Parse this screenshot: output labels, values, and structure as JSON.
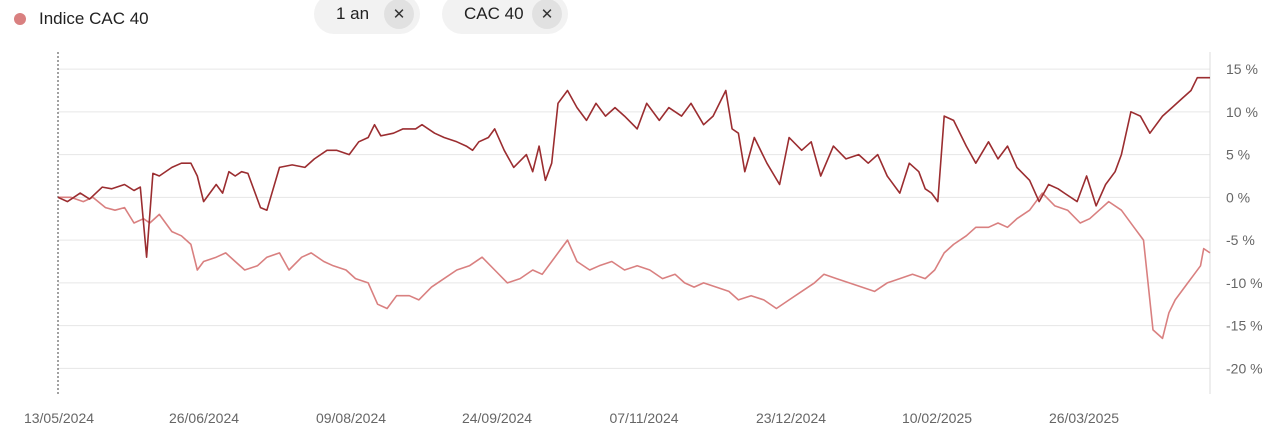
{
  "legend": {
    "label": "Indice CAC 40",
    "color": "#d98080"
  },
  "chips": [
    {
      "label": "1 an",
      "close_icon": "close-icon"
    },
    {
      "label": "CAC 40",
      "close_icon": "close-icon"
    }
  ],
  "chart_data": {
    "type": "line",
    "ylim": [
      -23,
      17
    ],
    "yticks": [
      15,
      10,
      5,
      0,
      -5,
      -10,
      -15,
      -20
    ],
    "ytick_labels": [
      "15 %",
      "10 %",
      "5 %",
      "0 %",
      "-5 %",
      "-10 %",
      "-15 %",
      "-20 %"
    ],
    "xtick_labels": [
      "13/05/2024",
      "26/06/2024",
      "09/08/2024",
      "24/09/2024",
      "07/11/2024",
      "23/12/2024",
      "10/02/2025",
      "26/03/2025"
    ],
    "x_start": "2024-05-13",
    "x_end": "2025-05-12",
    "grid": true,
    "series": [
      {
        "name": "",
        "color": "#9b2d30",
        "points": [
          [
            "2024-05-13",
            0
          ],
          [
            "2024-05-16",
            -0.5
          ],
          [
            "2024-05-20",
            0.5
          ],
          [
            "2024-05-23",
            -0.2
          ],
          [
            "2024-05-27",
            1.2
          ],
          [
            "2024-05-30",
            1.0
          ],
          [
            "2024-06-03",
            1.5
          ],
          [
            "2024-06-06",
            0.8
          ],
          [
            "2024-06-08",
            1.2
          ],
          [
            "2024-06-10",
            -7.0
          ],
          [
            "2024-06-12",
            2.8
          ],
          [
            "2024-06-14",
            2.5
          ],
          [
            "2024-06-18",
            3.5
          ],
          [
            "2024-06-21",
            4.0
          ],
          [
            "2024-06-24",
            4.0
          ],
          [
            "2024-06-26",
            2.5
          ],
          [
            "2024-06-28",
            -0.5
          ],
          [
            "2024-07-02",
            1.5
          ],
          [
            "2024-07-04",
            0.5
          ],
          [
            "2024-07-06",
            3.0
          ],
          [
            "2024-07-08",
            2.5
          ],
          [
            "2024-07-10",
            3.0
          ],
          [
            "2024-07-12",
            2.8
          ],
          [
            "2024-07-16",
            -1.2
          ],
          [
            "2024-07-18",
            -1.5
          ],
          [
            "2024-07-22",
            3.5
          ],
          [
            "2024-07-26",
            3.8
          ],
          [
            "2024-07-30",
            3.5
          ],
          [
            "2024-08-02",
            4.5
          ],
          [
            "2024-08-06",
            5.5
          ],
          [
            "2024-08-09",
            5.5
          ],
          [
            "2024-08-13",
            5.0
          ],
          [
            "2024-08-16",
            6.5
          ],
          [
            "2024-08-19",
            7.0
          ],
          [
            "2024-08-21",
            8.5
          ],
          [
            "2024-08-23",
            7.2
          ],
          [
            "2024-08-27",
            7.5
          ],
          [
            "2024-08-30",
            8.0
          ],
          [
            "2024-09-03",
            8.0
          ],
          [
            "2024-09-05",
            8.5
          ],
          [
            "2024-09-09",
            7.5
          ],
          [
            "2024-09-12",
            7.0
          ],
          [
            "2024-09-16",
            6.5
          ],
          [
            "2024-09-19",
            6.0
          ],
          [
            "2024-09-21",
            5.5
          ],
          [
            "2024-09-23",
            6.5
          ],
          [
            "2024-09-26",
            7.0
          ],
          [
            "2024-09-28",
            8.0
          ],
          [
            "2024-10-01",
            5.5
          ],
          [
            "2024-10-04",
            3.5
          ],
          [
            "2024-10-08",
            5.0
          ],
          [
            "2024-10-10",
            3.0
          ],
          [
            "2024-10-12",
            6.0
          ],
          [
            "2024-10-14",
            2.0
          ],
          [
            "2024-10-16",
            4.0
          ],
          [
            "2024-10-18",
            11.0
          ],
          [
            "2024-10-21",
            12.5
          ],
          [
            "2024-10-24",
            10.5
          ],
          [
            "2024-10-27",
            9.0
          ],
          [
            "2024-10-30",
            11.0
          ],
          [
            "2024-11-02",
            9.5
          ],
          [
            "2024-11-05",
            10.5
          ],
          [
            "2024-11-08",
            9.5
          ],
          [
            "2024-11-12",
            8.0
          ],
          [
            "2024-11-15",
            11.0
          ],
          [
            "2024-11-19",
            9.0
          ],
          [
            "2024-11-22",
            10.5
          ],
          [
            "2024-11-26",
            9.5
          ],
          [
            "2024-11-29",
            11.0
          ],
          [
            "2024-12-03",
            8.5
          ],
          [
            "2024-12-06",
            9.5
          ],
          [
            "2024-12-10",
            12.5
          ],
          [
            "2024-12-12",
            8.0
          ],
          [
            "2024-12-14",
            7.5
          ],
          [
            "2024-12-16",
            3.0
          ],
          [
            "2024-12-19",
            7.0
          ],
          [
            "2024-12-23",
            4.0
          ],
          [
            "2024-12-27",
            1.5
          ],
          [
            "2024-12-30",
            7.0
          ],
          [
            "2025-01-03",
            5.5
          ],
          [
            "2025-01-06",
            6.5
          ],
          [
            "2025-01-09",
            2.5
          ],
          [
            "2025-01-13",
            6.0
          ],
          [
            "2025-01-17",
            4.5
          ],
          [
            "2025-01-21",
            5.0
          ],
          [
            "2025-01-24",
            4.0
          ],
          [
            "2025-01-27",
            5.0
          ],
          [
            "2025-01-30",
            2.5
          ],
          [
            "2025-02-03",
            0.5
          ],
          [
            "2025-02-06",
            4.0
          ],
          [
            "2025-02-09",
            3.0
          ],
          [
            "2025-02-11",
            1.0
          ],
          [
            "2025-02-13",
            0.5
          ],
          [
            "2025-02-15",
            -0.5
          ],
          [
            "2025-02-17",
            9.5
          ],
          [
            "2025-02-20",
            9.0
          ],
          [
            "2025-02-24",
            6.0
          ],
          [
            "2025-02-27",
            4.0
          ],
          [
            "2025-03-03",
            6.5
          ],
          [
            "2025-03-06",
            4.5
          ],
          [
            "2025-03-09",
            6.0
          ],
          [
            "2025-03-12",
            3.5
          ],
          [
            "2025-03-16",
            2.0
          ],
          [
            "2025-03-19",
            -0.5
          ],
          [
            "2025-03-22",
            1.5
          ],
          [
            "2025-03-25",
            1.0
          ],
          [
            "2025-03-27",
            0.5
          ],
          [
            "2025-03-31",
            -0.5
          ],
          [
            "2025-04-03",
            2.5
          ],
          [
            "2025-04-06",
            -1.0
          ],
          [
            "2025-04-09",
            1.5
          ],
          [
            "2025-04-12",
            3.0
          ],
          [
            "2025-04-14",
            5.0
          ],
          [
            "2025-04-17",
            10.0
          ],
          [
            "2025-04-20",
            9.5
          ],
          [
            "2025-04-23",
            7.5
          ],
          [
            "2025-04-27",
            9.5
          ],
          [
            "2025-04-30",
            10.5
          ],
          [
            "2025-05-03",
            11.5
          ],
          [
            "2025-05-06",
            12.5
          ],
          [
            "2025-05-08",
            14.0
          ],
          [
            "2025-05-12",
            14.0
          ]
        ]
      },
      {
        "name": "Indice CAC 40",
        "color": "#d98080",
        "points": [
          [
            "2024-05-13",
            0
          ],
          [
            "2024-05-17",
            0
          ],
          [
            "2024-05-21",
            -0.5
          ],
          [
            "2024-05-24",
            0
          ],
          [
            "2024-05-28",
            -1.2
          ],
          [
            "2024-05-31",
            -1.5
          ],
          [
            "2024-06-03",
            -1.2
          ],
          [
            "2024-06-06",
            -3.0
          ],
          [
            "2024-06-09",
            -2.5
          ],
          [
            "2024-06-11",
            -3.0
          ],
          [
            "2024-06-14",
            -2.0
          ],
          [
            "2024-06-18",
            -4.0
          ],
          [
            "2024-06-21",
            -4.5
          ],
          [
            "2024-06-24",
            -5.5
          ],
          [
            "2024-06-26",
            -8.5
          ],
          [
            "2024-06-28",
            -7.5
          ],
          [
            "2024-07-02",
            -7.0
          ],
          [
            "2024-07-05",
            -6.5
          ],
          [
            "2024-07-08",
            -7.5
          ],
          [
            "2024-07-11",
            -8.5
          ],
          [
            "2024-07-15",
            -8.0
          ],
          [
            "2024-07-18",
            -7.0
          ],
          [
            "2024-07-22",
            -6.5
          ],
          [
            "2024-07-25",
            -8.5
          ],
          [
            "2024-07-29",
            -7.0
          ],
          [
            "2024-08-01",
            -6.5
          ],
          [
            "2024-08-05",
            -7.5
          ],
          [
            "2024-08-08",
            -8.0
          ],
          [
            "2024-08-12",
            -8.5
          ],
          [
            "2024-08-15",
            -9.5
          ],
          [
            "2024-08-19",
            -10.0
          ],
          [
            "2024-08-22",
            -12.5
          ],
          [
            "2024-08-25",
            -13.0
          ],
          [
            "2024-08-28",
            -11.5
          ],
          [
            "2024-09-01",
            -11.5
          ],
          [
            "2024-09-04",
            -12.0
          ],
          [
            "2024-09-08",
            -10.5
          ],
          [
            "2024-09-12",
            -9.5
          ],
          [
            "2024-09-16",
            -8.5
          ],
          [
            "2024-09-20",
            -8.0
          ],
          [
            "2024-09-24",
            -7.0
          ],
          [
            "2024-09-28",
            -8.5
          ],
          [
            "2024-10-02",
            -10.0
          ],
          [
            "2024-10-06",
            -9.5
          ],
          [
            "2024-10-10",
            -8.5
          ],
          [
            "2024-10-13",
            -9.0
          ],
          [
            "2024-10-16",
            -7.5
          ],
          [
            "2024-10-19",
            -6.0
          ],
          [
            "2024-10-21",
            -5.0
          ],
          [
            "2024-10-24",
            -7.5
          ],
          [
            "2024-10-28",
            -8.5
          ],
          [
            "2024-10-31",
            -8.0
          ],
          [
            "2024-11-04",
            -7.5
          ],
          [
            "2024-11-08",
            -8.5
          ],
          [
            "2024-11-12",
            -8.0
          ],
          [
            "2024-11-16",
            -8.5
          ],
          [
            "2024-11-20",
            -9.5
          ],
          [
            "2024-11-24",
            -9.0
          ],
          [
            "2024-11-27",
            -10.0
          ],
          [
            "2024-11-30",
            -10.5
          ],
          [
            "2024-12-03",
            -10.0
          ],
          [
            "2024-12-07",
            -10.5
          ],
          [
            "2024-12-11",
            -11.0
          ],
          [
            "2024-12-14",
            -12.0
          ],
          [
            "2024-12-18",
            -11.5
          ],
          [
            "2024-12-22",
            -12.0
          ],
          [
            "2024-12-26",
            -13.0
          ],
          [
            "2024-12-30",
            -12.0
          ],
          [
            "2025-01-03",
            -11.0
          ],
          [
            "2025-01-07",
            -10.0
          ],
          [
            "2025-01-10",
            -9.0
          ],
          [
            "2025-01-14",
            -9.5
          ],
          [
            "2025-01-18",
            -10.0
          ],
          [
            "2025-01-22",
            -10.5
          ],
          [
            "2025-01-26",
            -11.0
          ],
          [
            "2025-01-30",
            -10.0
          ],
          [
            "2025-02-03",
            -9.5
          ],
          [
            "2025-02-07",
            -9.0
          ],
          [
            "2025-02-11",
            -9.5
          ],
          [
            "2025-02-14",
            -8.5
          ],
          [
            "2025-02-17",
            -6.5
          ],
          [
            "2025-02-20",
            -5.5
          ],
          [
            "2025-02-24",
            -4.5
          ],
          [
            "2025-02-27",
            -3.5
          ],
          [
            "2025-03-03",
            -3.5
          ],
          [
            "2025-03-06",
            -3.0
          ],
          [
            "2025-03-09",
            -3.5
          ],
          [
            "2025-03-12",
            -2.5
          ],
          [
            "2025-03-16",
            -1.5
          ],
          [
            "2025-03-20",
            0.5
          ],
          [
            "2025-03-24",
            -1.0
          ],
          [
            "2025-03-28",
            -1.5
          ],
          [
            "2025-04-01",
            -3.0
          ],
          [
            "2025-04-04",
            -2.5
          ],
          [
            "2025-04-07",
            -1.5
          ],
          [
            "2025-04-10",
            -0.5
          ],
          [
            "2025-04-14",
            -1.5
          ],
          [
            "2025-04-18",
            -3.5
          ],
          [
            "2025-04-21",
            -5.0
          ],
          [
            "2025-04-24",
            -15.5
          ],
          [
            "2025-04-27",
            -16.5
          ],
          [
            "2025-04-29",
            -13.5
          ],
          [
            "2025-05-01",
            -12.0
          ],
          [
            "2025-05-03",
            -11.0
          ],
          [
            "2025-05-05",
            -10.0
          ],
          [
            "2025-05-07",
            -9.0
          ],
          [
            "2025-05-09",
            -8.0
          ],
          [
            "2025-05-10",
            -6.0
          ],
          [
            "2025-05-12",
            -6.5
          ]
        ]
      }
    ]
  }
}
